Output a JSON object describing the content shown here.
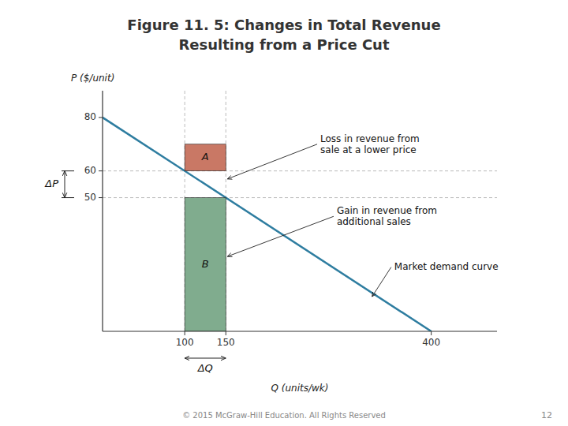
{
  "chart_data": {
    "type": "line",
    "title": "Figure 11. 5: Changes in Total Revenue",
    "subtitle": "Resulting from a Price Cut",
    "x_label": "Q (units/wk)",
    "y_label": "P ($/unit)",
    "x": [
      0,
      400
    ],
    "values": [
      80,
      0
    ],
    "color": "#2E7DA0",
    "xlim": [
      0,
      480
    ],
    "ylim": [
      0,
      90
    ],
    "xticks": [
      100,
      150,
      400
    ],
    "yticks": [
      50,
      60,
      80
    ],
    "rectangles": [
      {
        "label": "A",
        "x": [
          100,
          150
        ],
        "y": [
          60,
          70
        ],
        "color": "#C0604A"
      },
      {
        "label": "B",
        "x": [
          100,
          150
        ],
        "y": [
          0,
          50
        ],
        "color": "#6A9E7A"
      }
    ],
    "guides": {
      "x": [
        100,
        150
      ],
      "y": [
        50,
        60
      ]
    },
    "delta_p": {
      "label": "ΔP",
      "from": 50,
      "to": 60
    },
    "delta_q": {
      "label": "ΔQ",
      "from": 100,
      "to": 150
    },
    "annotations": [
      {
        "text": "Loss in revenue from\nsale at a lower price",
        "x": 152,
        "y": 57,
        "text_x": 265,
        "text_y": 70
      },
      {
        "text": "Gain in revenue from\nadditional sales",
        "x": 152,
        "y": 28,
        "text_x": 285,
        "text_y": 43
      },
      {
        "text": "Market demand curve",
        "x": 328,
        "y": 13,
        "text_x": 355,
        "text_y": 24
      }
    ],
    "footer": "© 2015 McGraw-Hill Education. All Rights Reserved",
    "page_number": "12"
  }
}
